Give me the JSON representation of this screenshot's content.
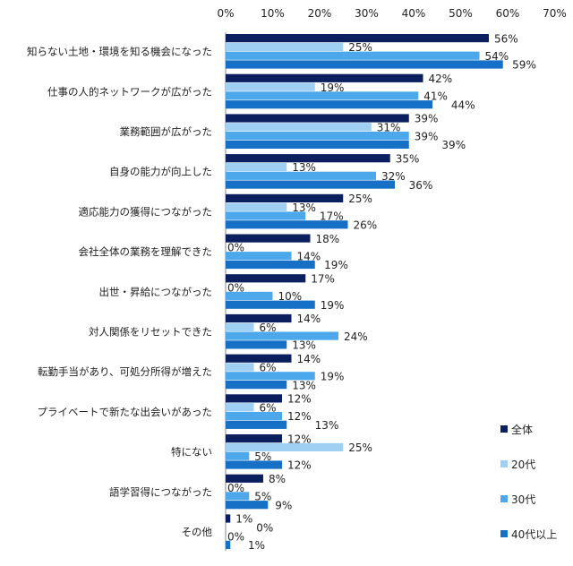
{
  "chart_data": {
    "type": "bar",
    "orientation": "horizontal",
    "title": "",
    "xlabel": "",
    "ylabel": "",
    "xlim": [
      0,
      70
    ],
    "x_ticks": [
      "0%",
      "10%",
      "20%",
      "30%",
      "40%",
      "50%",
      "60%",
      "70%"
    ],
    "x_axis_position": "top",
    "grid": false,
    "legend_position": "right-bottom",
    "categories": [
      "知らない土地・環境を知る機会になった",
      "仕事の人的ネットワークが広がった",
      "業務範囲が広がった",
      "自身の能力が向上した",
      "適応能力の獲得につながった",
      "会社全体の業務を理解できた",
      "出世・昇給につながった",
      "対人関係をリセットできた",
      "転勤手当があり、可処分所得が増えた",
      "プライベートで新たな出会いがあった",
      "特にない",
      "語学習得につながった",
      "その他"
    ],
    "series": [
      {
        "name": "全体",
        "color": "#0b1f5e",
        "values": [
          56,
          42,
          39,
          35,
          25,
          18,
          17,
          14,
          14,
          12,
          12,
          8,
          1
        ]
      },
      {
        "name": "20代",
        "color": "#9fcff3",
        "values": [
          25,
          19,
          31,
          13,
          13,
          0,
          0,
          6,
          6,
          6,
          25,
          0,
          0
        ]
      },
      {
        "name": "30代",
        "color": "#4ca8ea",
        "values": [
          54,
          41,
          39,
          32,
          17,
          14,
          10,
          24,
          19,
          12,
          5,
          5,
          0
        ]
      },
      {
        "name": "40代以上",
        "color": "#1670c6",
        "values": [
          59,
          44,
          39,
          36,
          26,
          19,
          19,
          13,
          13,
          13,
          12,
          9,
          1
        ]
      }
    ],
    "value_suffix": "%"
  }
}
